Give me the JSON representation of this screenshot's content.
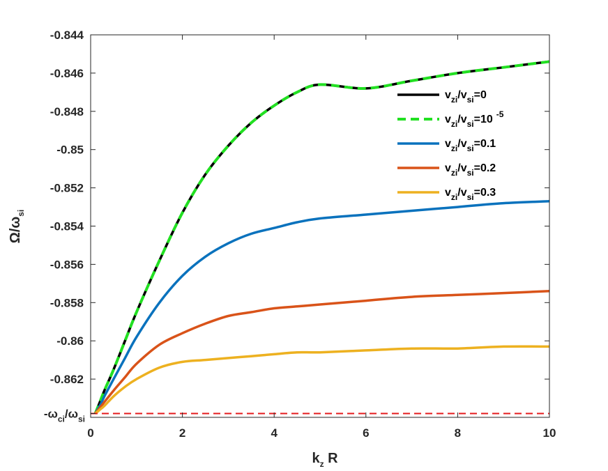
{
  "chart_data": {
    "type": "line",
    "title": "",
    "xlabel": {
      "main": "k",
      "sub": "z",
      "rest": " R"
    },
    "ylabel": {
      "main": "Ω/ω",
      "sub": "si"
    },
    "xlim": [
      0,
      10
    ],
    "ylim": [
      -0.864,
      -0.844
    ],
    "grid": false,
    "legend_placement": "top-right",
    "x_ticks": [
      {
        "value": 0,
        "label": "0"
      },
      {
        "value": 2,
        "label": "2"
      },
      {
        "value": 4,
        "label": "4"
      },
      {
        "value": 6,
        "label": "6"
      },
      {
        "value": 8,
        "label": "8"
      },
      {
        "value": 10,
        "label": "10"
      }
    ],
    "y_ticks": [
      {
        "value": -0.844,
        "label": "-0.844"
      },
      {
        "value": -0.846,
        "label": "-0.846"
      },
      {
        "value": -0.848,
        "label": "-0.848"
      },
      {
        "value": -0.85,
        "label": "-0.85"
      },
      {
        "value": -0.852,
        "label": "-0.852"
      },
      {
        "value": -0.854,
        "label": "-0.854"
      },
      {
        "value": -0.856,
        "label": "-0.856"
      },
      {
        "value": -0.858,
        "label": "-0.858"
      },
      {
        "value": -0.86,
        "label": "-0.86"
      },
      {
        "value": -0.862,
        "label": "-0.862"
      }
    ],
    "reference_line": {
      "value": -0.8638,
      "label_parts": [
        "-ω",
        "ci",
        "/ω",
        "si"
      ],
      "color": "#e41a1c",
      "style": "dashed"
    },
    "x": [
      0.1,
      0.2,
      0.3,
      0.5,
      0.75,
      1,
      1.5,
      2,
      2.5,
      3,
      3.5,
      4,
      4.5,
      5,
      6,
      7,
      8,
      9,
      10
    ],
    "series": [
      {
        "legend_parts": [
          "v",
          "zi",
          "/v",
          "si",
          "=0"
        ],
        "color": "#000000",
        "style": "solid",
        "values": [
          -0.8638,
          -0.8632,
          -0.8626,
          -0.8615,
          -0.86,
          -0.8585,
          -0.8558,
          -0.8533,
          -0.8513,
          -0.8498,
          -0.8486,
          -0.8477,
          -0.847,
          -0.8466,
          -0.8468,
          -0.8464,
          -0.846,
          -0.8457,
          -0.8454
        ]
      },
      {
        "legend_parts": [
          "v",
          "zi",
          "/v",
          "si",
          "=10",
          "-5"
        ],
        "color": "#22e022",
        "style": "dashed",
        "values": [
          -0.8638,
          -0.8632,
          -0.8626,
          -0.8615,
          -0.86,
          -0.8585,
          -0.8558,
          -0.8533,
          -0.8513,
          -0.8498,
          -0.8486,
          -0.8477,
          -0.847,
          -0.8466,
          -0.8468,
          -0.8464,
          -0.846,
          -0.8457,
          -0.8454
        ]
      },
      {
        "legend_parts": [
          "v",
          "zi",
          "/v",
          "si",
          "=0.1"
        ],
        "color": "#0a72bd",
        "style": "solid",
        "values": [
          -0.8638,
          -0.8634,
          -0.8629,
          -0.862,
          -0.8609,
          -0.8598,
          -0.858,
          -0.8566,
          -0.8556,
          -0.8549,
          -0.8544,
          -0.8541,
          -0.8538,
          -0.8536,
          -0.8534,
          -0.8532,
          -0.853,
          -0.8528,
          -0.8527
        ]
      },
      {
        "legend_parts": [
          "v",
          "zi",
          "/v",
          "si",
          "=0.2"
        ],
        "color": "#d95319",
        "style": "solid",
        "values": [
          -0.8638,
          -0.8635,
          -0.8632,
          -0.8626,
          -0.8619,
          -0.8612,
          -0.8602,
          -0.8596,
          -0.8591,
          -0.8587,
          -0.8585,
          -0.8583,
          -0.8582,
          -0.8581,
          -0.8579,
          -0.8577,
          -0.8576,
          -0.8575,
          -0.8574
        ]
      },
      {
        "legend_parts": [
          "v",
          "zi",
          "/v",
          "si",
          "=0.3"
        ],
        "color": "#edb120",
        "style": "solid",
        "values": [
          -0.8638,
          -0.8636,
          -0.8634,
          -0.8629,
          -0.8624,
          -0.862,
          -0.8614,
          -0.8611,
          -0.861,
          -0.8609,
          -0.8608,
          -0.8607,
          -0.8606,
          -0.8606,
          -0.8605,
          -0.8604,
          -0.8604,
          -0.8603,
          -0.8603
        ]
      }
    ]
  }
}
